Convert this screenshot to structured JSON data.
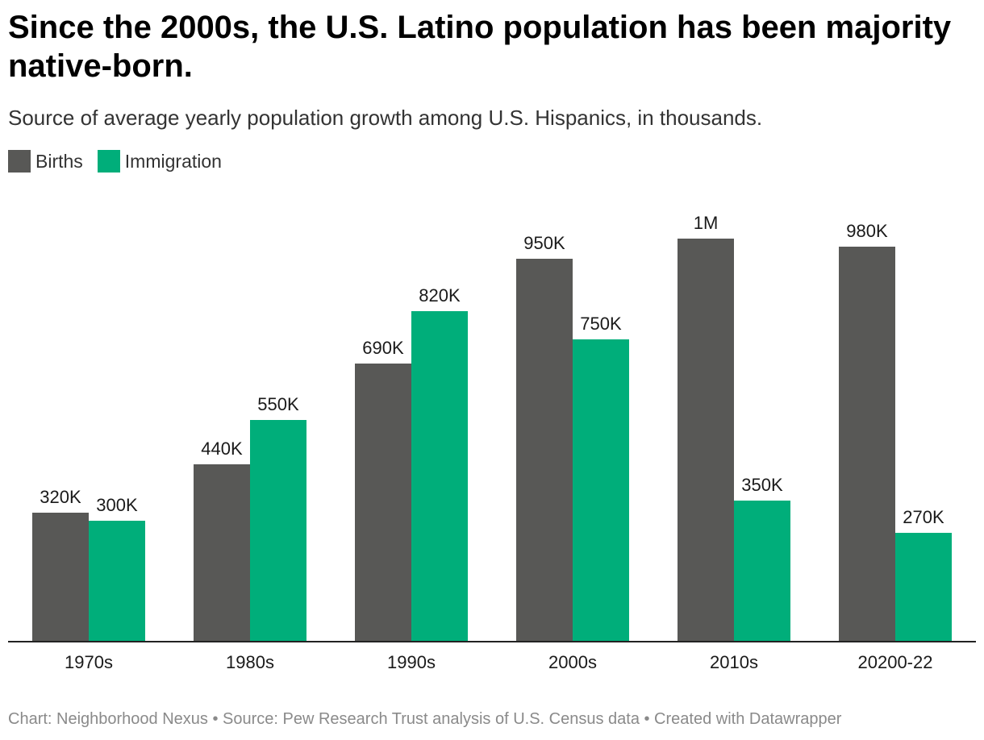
{
  "header": {
    "title": "Since the 2000s, the U.S. Latino population has been majority native-born.",
    "subtitle": "Source of average yearly population growth among U.S. Hispanics, in thousands."
  },
  "legend": [
    {
      "label": "Births",
      "color": "#585856"
    },
    {
      "label": "Immigration",
      "color": "#00ae7a"
    }
  ],
  "chart_data": {
    "type": "bar",
    "categories": [
      "1970s",
      "1980s",
      "1990s",
      "2000s",
      "2010s",
      "20200-22"
    ],
    "series": [
      {
        "name": "Births",
        "color": "#585856",
        "values": [
          320,
          440,
          690,
          950,
          1000,
          980
        ],
        "labels": [
          "320K",
          "440K",
          "690K",
          "950K",
          "1M",
          "980K"
        ]
      },
      {
        "name": "Immigration",
        "color": "#00ae7a",
        "values": [
          300,
          550,
          820,
          750,
          350,
          270
        ],
        "labels": [
          "300K",
          "550K",
          "820K",
          "750K",
          "350K",
          "270K"
        ]
      }
    ],
    "ylim": [
      0,
      1000
    ],
    "grid": false,
    "legend_position": "top-left"
  },
  "footer": {
    "credit": "Chart: Neighborhood Nexus • Source: Pew Research Trust analysis of U.S. Census data • Created with Datawrapper"
  }
}
